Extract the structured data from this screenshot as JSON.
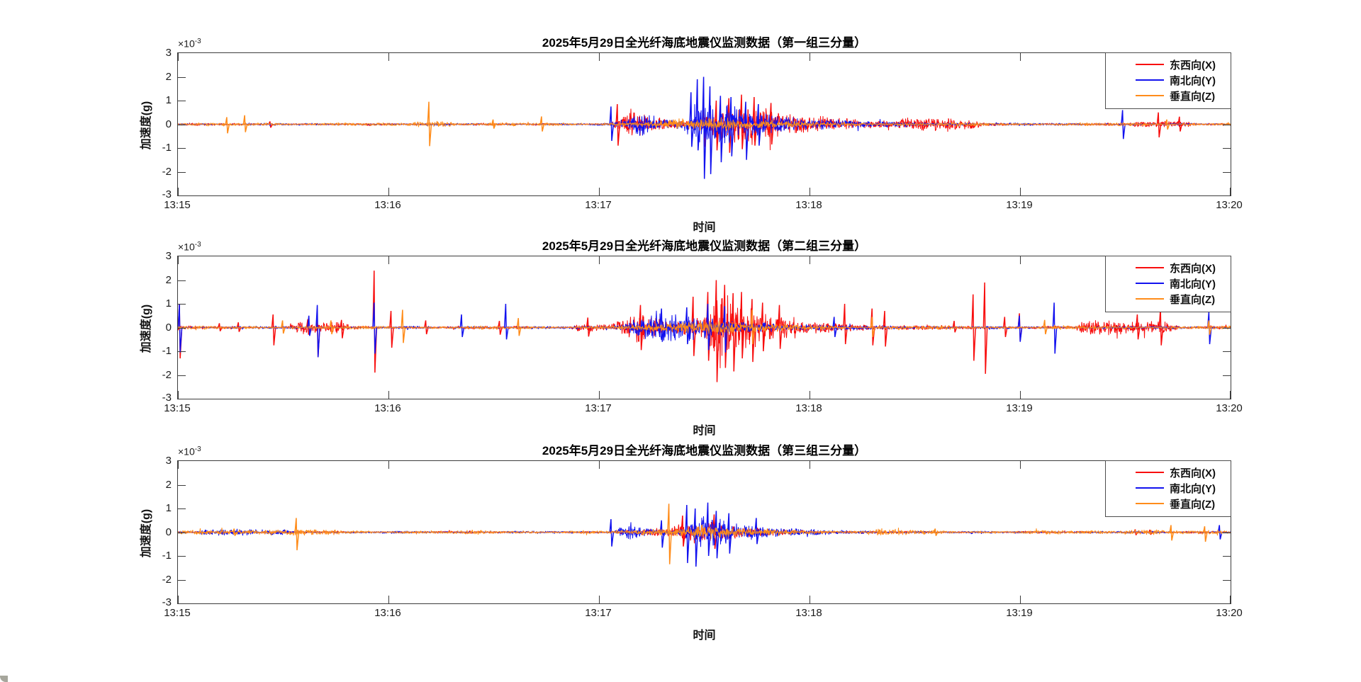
{
  "figure": {
    "background": "#FFFFFF",
    "axis_color": "#3C3C3C",
    "text_color": "#1A1A1A"
  },
  "colors": {
    "east_west_x": "#F80E0E",
    "north_south_y": "#1212EF",
    "vertical_z": "#FF8C1A"
  },
  "legend_entries": [
    {
      "label": "东西向(X)",
      "color": "#F80E0E"
    },
    {
      "label": "南北向(Y)",
      "color": "#1212EF"
    },
    {
      "label": "垂直向(Z)",
      "color": "#FF8C1A"
    }
  ],
  "chart_data": [
    {
      "type": "line",
      "title": "2025年5月29日全光纤海底地震仪监测数据（第一组三分量）",
      "xlabel": "时间",
      "ylabel": "加速度(g)",
      "y_exponent": {
        "base": "×10",
        "power": "-3"
      },
      "x_ticks": [
        "13:15",
        "13:16",
        "13:17",
        "13:18",
        "13:19",
        "13:20"
      ],
      "y_ticks": [
        "3",
        "2",
        "1",
        "0",
        "-1",
        "-2",
        "-3"
      ],
      "ylim": [
        -0.003,
        0.003
      ],
      "x_range_minutes": [
        0,
        5
      ],
      "grid": false,
      "legend_position": "northeast-inside",
      "amplitude_unit": "1e-3 g",
      "time_unit": "minutes after 13:15",
      "series": [
        {
          "name": "东西向(X)",
          "color": "#F80E0E",
          "noise": 0.055,
          "patches": [
            {
              "t0": 3.45,
              "t1": 3.78,
              "amp": 0.15
            },
            {
              "t0": 4.55,
              "t1": 4.8,
              "amp": 0.1
            }
          ],
          "bursts": [
            {
              "t0": 2.03,
              "tp": 2.15,
              "t1": 2.5,
              "amp": 0.6
            },
            {
              "t0": 2.4,
              "tp": 2.65,
              "t1": 3.45,
              "amp": 1.05
            }
          ],
          "spikes": [
            [
              0.44,
              0.12,
              -0.14
            ],
            [
              2.09,
              0.85,
              -0.9
            ],
            [
              2.5,
              0.85,
              -0.95
            ],
            [
              2.56,
              1.0,
              -1.1
            ],
            [
              2.62,
              1.1,
              -1.2
            ],
            [
              2.68,
              1.25,
              -1.05
            ],
            [
              2.74,
              1.15,
              -0.9
            ],
            [
              2.82,
              0.9,
              -0.85
            ],
            [
              4.66,
              0.5,
              -0.55
            ],
            [
              4.76,
              0.32,
              -0.3
            ]
          ]
        },
        {
          "name": "南北向(Y)",
          "color": "#1212EF",
          "noise": 0.05,
          "patches": [],
          "bursts": [
            {
              "t0": 2.03,
              "tp": 2.2,
              "t1": 2.5,
              "amp": 0.55
            },
            {
              "t0": 2.35,
              "tp": 2.52,
              "t1": 3.35,
              "amp": 1.0
            }
          ],
          "spikes": [
            [
              2.06,
              0.75,
              -0.7
            ],
            [
              2.44,
              1.35,
              -0.95
            ],
            [
              2.47,
              1.9,
              -1.1
            ],
            [
              2.5,
              2.0,
              -2.3
            ],
            [
              2.53,
              1.6,
              -2.1
            ],
            [
              2.58,
              1.2,
              -1.6
            ],
            [
              2.63,
              1.15,
              -1.35
            ],
            [
              2.7,
              0.95,
              -1.5
            ],
            [
              2.76,
              0.85,
              -0.9
            ],
            [
              4.49,
              0.6,
              -0.62
            ]
          ]
        },
        {
          "name": "垂直向(Z)",
          "color": "#FF8C1A",
          "noise": 0.075,
          "patches": [
            {
              "t0": 1.12,
              "t1": 1.28,
              "amp": 0.08
            }
          ],
          "bursts": [
            {
              "t0": 2.05,
              "tp": 2.55,
              "t1": 3.2,
              "amp": 0.3
            }
          ],
          "spikes": [
            [
              0.235,
              0.3,
              -0.38
            ],
            [
              0.32,
              0.38,
              -0.33
            ],
            [
              1.195,
              0.95,
              -0.92
            ],
            [
              1.5,
              0.2,
              -0.18
            ],
            [
              1.73,
              0.33,
              -0.3
            ],
            [
              4.7,
              0.2,
              -0.22
            ]
          ]
        }
      ]
    },
    {
      "type": "line",
      "title": "2025年5月29日全光纤海底地震仪监测数据（第二组三分量）",
      "xlabel": "时间",
      "ylabel": "加速度(g)",
      "y_exponent": {
        "base": "×10",
        "power": "-3"
      },
      "x_ticks": [
        "13:15",
        "13:16",
        "13:17",
        "13:18",
        "13:19",
        "13:20"
      ],
      "y_ticks": [
        "3",
        "2",
        "1",
        "0",
        "-1",
        "-2",
        "-3"
      ],
      "ylim": [
        -0.003,
        0.003
      ],
      "x_range_minutes": [
        0,
        5
      ],
      "grid": false,
      "legend_position": "northeast-inside",
      "amplitude_unit": "1e-3 g",
      "time_unit": "minutes after 13:15",
      "series": [
        {
          "name": "东西向(X)",
          "color": "#F80E0E",
          "noise": 0.075,
          "patches": [
            {
              "t0": 0.55,
              "t1": 0.78,
              "amp": 0.18
            },
            {
              "t0": 1.9,
              "t1": 2.0,
              "amp": 0.12
            },
            {
              "t0": 4.3,
              "t1": 4.72,
              "amp": 0.24
            }
          ],
          "bursts": [
            {
              "t0": 2.0,
              "tp": 2.2,
              "t1": 2.5,
              "amp": 0.7
            },
            {
              "t0": 2.35,
              "tp": 2.58,
              "t1": 3.2,
              "amp": 1.45
            }
          ],
          "spikes": [
            [
              0.01,
              1.0,
              -1.3
            ],
            [
              0.2,
              0.18,
              -0.15
            ],
            [
              0.29,
              0.22,
              -0.18
            ],
            [
              0.455,
              0.55,
              -0.75
            ],
            [
              0.62,
              0.35,
              -0.3
            ],
            [
              0.665,
              0.4,
              -1.25
            ],
            [
              0.78,
              0.32,
              -0.45
            ],
            [
              0.935,
              2.4,
              -1.9
            ],
            [
              1.015,
              0.7,
              -0.85
            ],
            [
              1.18,
              0.3,
              -0.28
            ],
            [
              1.53,
              0.28,
              -0.3
            ],
            [
              1.95,
              0.42,
              -0.38
            ],
            [
              2.2,
              0.95,
              -0.95
            ],
            [
              2.45,
              1.3,
              -1.2
            ],
            [
              2.52,
              1.5,
              -1.4
            ],
            [
              2.56,
              2.0,
              -2.3
            ],
            [
              2.6,
              1.8,
              -1.7
            ],
            [
              2.64,
              1.45,
              -1.85
            ],
            [
              2.68,
              1.5,
              -1.3
            ],
            [
              2.73,
              1.2,
              -1.45
            ],
            [
              2.78,
              1.05,
              -1.0
            ],
            [
              2.86,
              0.95,
              -0.9
            ],
            [
              3.17,
              1.0,
              -0.7
            ],
            [
              3.3,
              0.8,
              -0.75
            ],
            [
              3.36,
              0.7,
              -0.8
            ],
            [
              3.69,
              0.28,
              -0.2
            ],
            [
              3.78,
              1.4,
              -1.4
            ],
            [
              3.835,
              1.9,
              -1.95
            ],
            [
              3.93,
              0.45,
              -0.4
            ],
            [
              4.0,
              0.6,
              -0.55
            ],
            [
              4.56,
              0.55,
              -0.5
            ],
            [
              4.67,
              0.8,
              -0.75
            ]
          ]
        },
        {
          "name": "南北向(Y)",
          "color": "#1212EF",
          "noise": 0.06,
          "patches": [],
          "bursts": [
            {
              "t0": 2.0,
              "tp": 2.3,
              "t1": 3.1,
              "amp": 0.72
            }
          ],
          "spikes": [
            [
              0.01,
              1.0,
              -1.05
            ],
            [
              0.625,
              0.5,
              -0.35
            ],
            [
              0.665,
              0.95,
              -1.25
            ],
            [
              0.935,
              1.05,
              -1.1
            ],
            [
              1.35,
              0.55,
              -0.4
            ],
            [
              1.56,
              1.0,
              -0.5
            ],
            [
              2.3,
              0.8,
              -0.6
            ],
            [
              2.42,
              0.85,
              -0.7
            ],
            [
              2.52,
              1.0,
              -0.95
            ],
            [
              2.6,
              0.9,
              -1.05
            ],
            [
              3.12,
              0.45,
              -0.4
            ],
            [
              4.0,
              0.5,
              -0.6
            ],
            [
              4.165,
              1.05,
              -1.1
            ],
            [
              4.9,
              0.65,
              -0.7
            ]
          ]
        },
        {
          "name": "垂直向(Z)",
          "color": "#FF8C1A",
          "noise": 0.08,
          "patches": [],
          "bursts": [
            {
              "t0": 2.0,
              "tp": 2.55,
              "t1": 3.1,
              "amp": 0.3
            }
          ],
          "spikes": [
            [
              0.5,
              0.3,
              -0.25
            ],
            [
              0.73,
              0.3,
              -0.28
            ],
            [
              1.07,
              0.75,
              -0.65
            ],
            [
              1.62,
              0.4,
              -0.35
            ],
            [
              2.73,
              0.75,
              -0.7
            ],
            [
              3.3,
              0.45,
              -0.4
            ],
            [
              4.12,
              0.32,
              -0.28
            ],
            [
              4.9,
              0.3,
              -0.3
            ]
          ]
        }
      ]
    },
    {
      "type": "line",
      "title": "2025年5月29日全光纤海底地震仪监测数据（第三组三分量）",
      "xlabel": "时间",
      "ylabel": "加速度(g)",
      "y_exponent": {
        "base": "×10",
        "power": "-3"
      },
      "x_ticks": [
        "13:15",
        "13:16",
        "13:17",
        "13:18",
        "13:19",
        "13:20"
      ],
      "y_ticks": [
        "3",
        "2",
        "1",
        "0",
        "-1",
        "-2",
        "-3"
      ],
      "ylim": [
        -0.003,
        0.003
      ],
      "x_range_minutes": [
        0,
        5
      ],
      "grid": false,
      "legend_position": "northeast-inside",
      "amplitude_unit": "1e-3 g",
      "time_unit": "minutes after 13:15",
      "series": [
        {
          "name": "东西向(X)",
          "color": "#F80E0E",
          "noise": 0.05,
          "patches": [],
          "bursts": [
            {
              "t0": 2.05,
              "tp": 2.5,
              "t1": 3.0,
              "amp": 0.5
            }
          ],
          "spikes": [
            [
              2.4,
              0.7,
              -0.6
            ],
            [
              2.55,
              0.75,
              -0.7
            ],
            [
              4.55,
              0.12,
              -0.12
            ],
            [
              4.62,
              0.1,
              -0.1
            ]
          ]
        },
        {
          "name": "南北向(Y)",
          "color": "#1212EF",
          "noise": 0.055,
          "patches": [
            {
              "t0": 0.12,
              "t1": 0.5,
              "amp": 0.08
            }
          ],
          "bursts": [
            {
              "t0": 2.02,
              "tp": 2.15,
              "t1": 2.35,
              "amp": 0.45
            },
            {
              "t0": 2.35,
              "tp": 2.5,
              "t1": 3.05,
              "amp": 0.8
            }
          ],
          "spikes": [
            [
              2.06,
              0.55,
              -0.6
            ],
            [
              2.3,
              0.5,
              -0.65
            ],
            [
              2.42,
              1.15,
              -1.3
            ],
            [
              2.46,
              1.0,
              -1.45
            ],
            [
              2.52,
              1.25,
              -1.0
            ],
            [
              2.56,
              0.9,
              -1.1
            ],
            [
              2.62,
              0.8,
              -0.9
            ],
            [
              2.75,
              0.6,
              -0.5
            ],
            [
              4.95,
              0.3,
              -0.3
            ]
          ]
        },
        {
          "name": "垂直向(Z)",
          "color": "#FF8C1A",
          "noise": 0.085,
          "patches": [
            {
              "t0": 0.1,
              "t1": 0.75,
              "amp": 0.05
            },
            {
              "t0": 3.3,
              "t1": 3.45,
              "amp": 0.07
            },
            {
              "t0": 4.5,
              "t1": 4.65,
              "amp": 0.06
            }
          ],
          "bursts": [
            {
              "t0": 2.1,
              "tp": 2.5,
              "t1": 3.0,
              "amp": 0.28
            }
          ],
          "spikes": [
            [
              0.27,
              0.15,
              -0.15
            ],
            [
              0.565,
              0.6,
              -0.76
            ],
            [
              2.335,
              1.2,
              -1.35
            ],
            [
              3.6,
              0.15,
              -0.15
            ],
            [
              4.72,
              0.3,
              -0.35
            ],
            [
              4.88,
              0.25,
              -0.4
            ]
          ]
        }
      ]
    }
  ]
}
